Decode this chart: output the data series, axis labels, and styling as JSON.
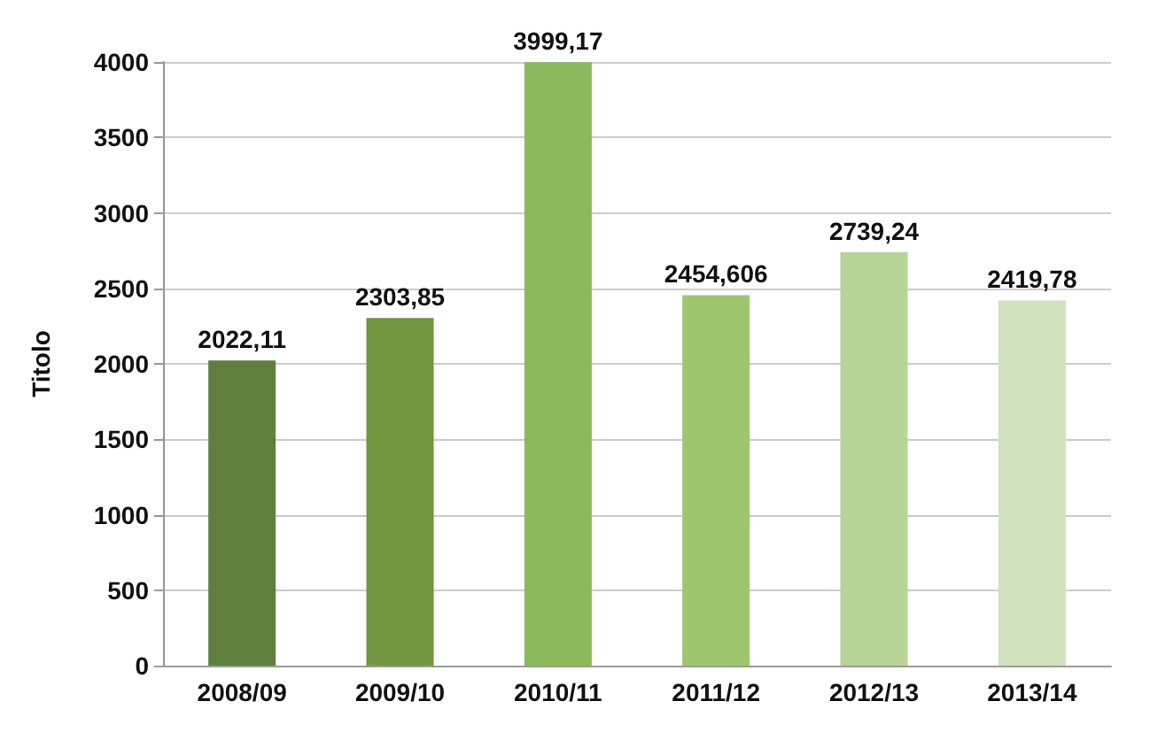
{
  "chart_data": {
    "type": "bar",
    "ylabel": "Titolo",
    "categories": [
      "2008/09",
      "2009/10",
      "2010/11",
      "2011/12",
      "2012/13",
      "2013/14"
    ],
    "values": [
      2022.11,
      2303.85,
      3999.17,
      2454.606,
      2739.24,
      2419.78
    ],
    "colors": [
      "#5f7f3c",
      "#72963f",
      "#8cb95c",
      "#9ec66f",
      "#b7d396",
      "#cfe1bd"
    ],
    "value_labels": [
      "2022,11",
      "2303,85",
      "3999,17",
      "2454,606",
      "2739,24",
      "2419,78"
    ],
    "ylim": [
      0,
      4000
    ],
    "yticks": [
      0,
      500,
      1000,
      1500,
      2000,
      2500,
      3000,
      3500,
      4000
    ],
    "grid": "y"
  }
}
